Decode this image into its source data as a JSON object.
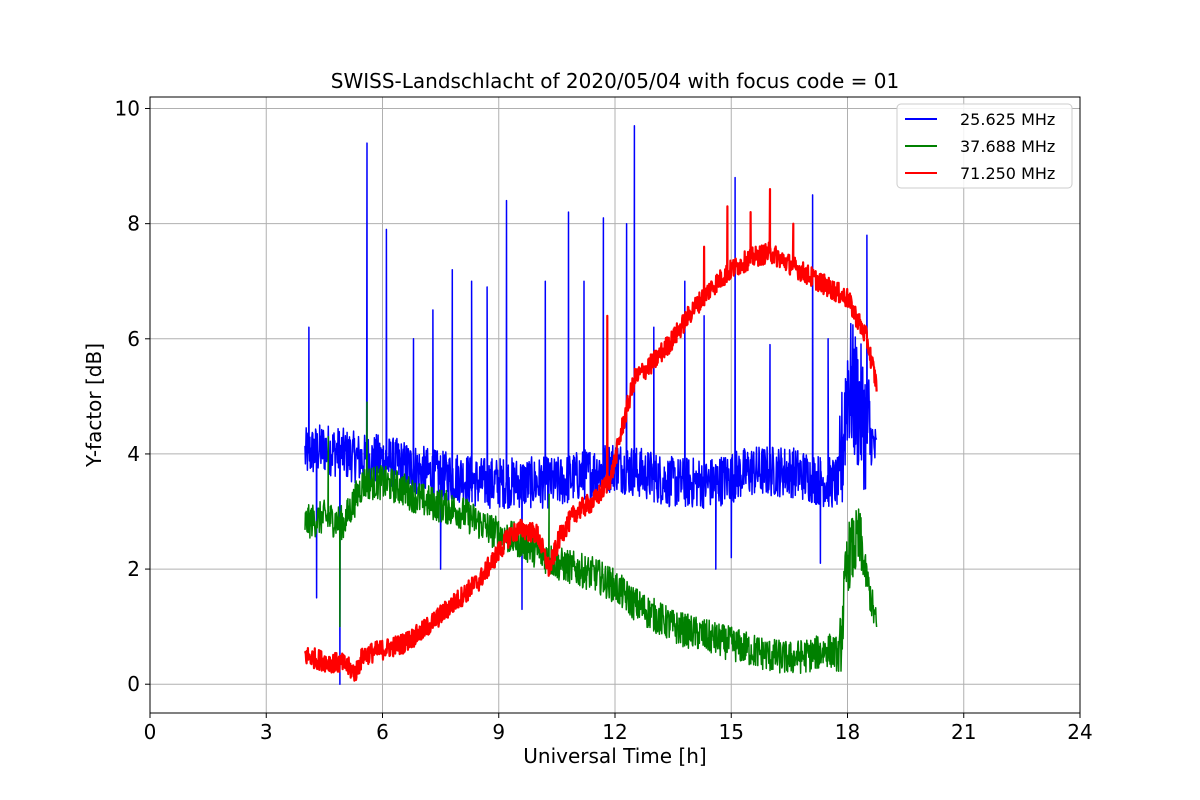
{
  "chart_data": {
    "type": "line",
    "title": "SWISS-Landschlacht of 2020/05/04 with focus code = 01",
    "xlabel": "Universal Time [h]",
    "ylabel": "Y-factor [dB]",
    "xlim": [
      0,
      24
    ],
    "ylim": [
      -0.5,
      10.2
    ],
    "xticks": [
      0,
      3,
      6,
      9,
      12,
      15,
      18,
      21,
      24
    ],
    "xtick_labels": [
      "0",
      "3",
      "6",
      "9",
      "12",
      "15",
      "18",
      "21",
      "24"
    ],
    "yticks": [
      0,
      2,
      4,
      6,
      8,
      10
    ],
    "ytick_labels": [
      "0",
      "2",
      "4",
      "6",
      "8",
      "10"
    ],
    "grid": true,
    "legend_position": "top-right",
    "series": [
      {
        "name": "25.625 MHz",
        "color": "#0000ff",
        "x": [
          4.0,
          4.5,
          5.0,
          5.5,
          6.0,
          6.5,
          7.0,
          7.5,
          8.0,
          8.5,
          9.0,
          9.5,
          10.0,
          10.5,
          11.0,
          11.5,
          12.0,
          12.5,
          13.0,
          13.5,
          14.0,
          14.5,
          15.0,
          15.5,
          16.0,
          16.5,
          17.0,
          17.5,
          17.8,
          18.0,
          18.3,
          18.75
        ],
        "y": [
          4.0,
          4.1,
          4.0,
          3.9,
          3.9,
          3.8,
          3.7,
          3.6,
          3.6,
          3.5,
          3.5,
          3.5,
          3.5,
          3.5,
          3.6,
          3.7,
          3.8,
          3.7,
          3.6,
          3.5,
          3.5,
          3.5,
          3.6,
          3.7,
          3.7,
          3.7,
          3.6,
          3.5,
          3.5,
          5.3,
          4.8,
          4.0
        ],
        "spikes": [
          {
            "x": 4.1,
            "y": 6.2
          },
          {
            "x": 5.6,
            "y": 9.4
          },
          {
            "x": 6.1,
            "y": 7.9
          },
          {
            "x": 6.8,
            "y": 6.0
          },
          {
            "x": 7.3,
            "y": 6.5
          },
          {
            "x": 7.8,
            "y": 7.2
          },
          {
            "x": 8.3,
            "y": 7.0
          },
          {
            "x": 8.7,
            "y": 6.9
          },
          {
            "x": 9.2,
            "y": 8.4
          },
          {
            "x": 10.2,
            "y": 7.0
          },
          {
            "x": 10.8,
            "y": 8.2
          },
          {
            "x": 11.2,
            "y": 7.0
          },
          {
            "x": 11.7,
            "y": 8.1
          },
          {
            "x": 12.3,
            "y": 8.0
          },
          {
            "x": 12.5,
            "y": 9.7
          },
          {
            "x": 13.0,
            "y": 6.2
          },
          {
            "x": 13.8,
            "y": 7.0
          },
          {
            "x": 14.3,
            "y": 6.4
          },
          {
            "x": 15.1,
            "y": 8.8
          },
          {
            "x": 16.0,
            "y": 5.9
          },
          {
            "x": 17.1,
            "y": 8.5
          },
          {
            "x": 17.5,
            "y": 6.0
          },
          {
            "x": 18.5,
            "y": 7.8
          }
        ],
        "dips": [
          {
            "x": 4.3,
            "y": 1.5
          },
          {
            "x": 4.9,
            "y": 0.0
          },
          {
            "x": 9.6,
            "y": 1.3
          },
          {
            "x": 7.5,
            "y": 2.0
          },
          {
            "x": 14.6,
            "y": 2.0
          },
          {
            "x": 15.0,
            "y": 2.2
          },
          {
            "x": 17.3,
            "y": 2.1
          }
        ]
      },
      {
        "name": "37.688 MHz",
        "color": "#008000",
        "x": [
          4.0,
          4.5,
          5.0,
          5.5,
          6.0,
          6.5,
          7.0,
          7.5,
          8.0,
          8.5,
          9.0,
          9.5,
          10.0,
          10.5,
          11.0,
          11.5,
          12.0,
          12.5,
          13.0,
          13.5,
          14.0,
          14.5,
          15.0,
          15.5,
          16.0,
          16.5,
          17.0,
          17.5,
          17.8,
          18.0,
          18.3,
          18.75
        ],
        "y": [
          2.8,
          2.9,
          2.8,
          3.5,
          3.5,
          3.4,
          3.2,
          3.1,
          3.0,
          2.8,
          2.6,
          2.5,
          2.3,
          2.1,
          2.0,
          1.9,
          1.7,
          1.4,
          1.2,
          1.0,
          0.9,
          0.8,
          0.7,
          0.6,
          0.5,
          0.45,
          0.5,
          0.6,
          0.5,
          2.2,
          2.5,
          1.0
        ],
        "spikes": [
          {
            "x": 4.6,
            "y": 4.3
          },
          {
            "x": 5.6,
            "y": 4.9
          },
          {
            "x": 10.3,
            "y": 3.3
          }
        ],
        "dips": [
          {
            "x": 4.9,
            "y": 1.0
          }
        ]
      },
      {
        "name": "71.250 MHz",
        "color": "#ff0000",
        "x": [
          4.0,
          4.5,
          5.0,
          5.3,
          5.5,
          6.0,
          6.5,
          7.0,
          7.5,
          8.0,
          8.5,
          9.0,
          9.3,
          9.6,
          10.0,
          10.3,
          10.6,
          11.0,
          11.5,
          11.9,
          12.2,
          12.5,
          13.0,
          13.5,
          14.0,
          14.5,
          15.0,
          15.5,
          16.0,
          16.5,
          17.0,
          17.5,
          18.0,
          18.5,
          18.75
        ],
        "y": [
          0.5,
          0.4,
          0.35,
          0.2,
          0.5,
          0.6,
          0.7,
          0.9,
          1.2,
          1.5,
          1.8,
          2.3,
          2.6,
          2.7,
          2.6,
          2.0,
          2.6,
          3.0,
          3.2,
          3.6,
          4.5,
          5.3,
          5.6,
          6.0,
          6.5,
          6.9,
          7.2,
          7.4,
          7.5,
          7.3,
          7.1,
          6.9,
          6.7,
          6.0,
          5.2
        ],
        "spikes": [
          {
            "x": 11.8,
            "y": 6.4
          },
          {
            "x": 13.6,
            "y": 6.2
          },
          {
            "x": 14.3,
            "y": 7.6
          },
          {
            "x": 14.9,
            "y": 8.3
          },
          {
            "x": 15.5,
            "y": 8.2
          },
          {
            "x": 16.0,
            "y": 8.6
          },
          {
            "x": 16.6,
            "y": 8.0
          }
        ],
        "dips": []
      }
    ]
  }
}
